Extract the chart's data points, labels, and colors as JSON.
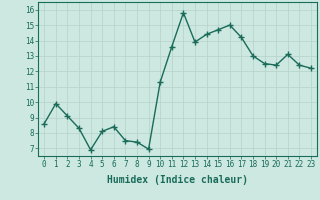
{
  "x": [
    0,
    1,
    2,
    3,
    4,
    5,
    6,
    7,
    8,
    9,
    10,
    11,
    12,
    13,
    14,
    15,
    16,
    17,
    18,
    19,
    20,
    21,
    22,
    23
  ],
  "y": [
    8.6,
    9.9,
    9.1,
    8.3,
    6.9,
    8.1,
    8.4,
    7.5,
    7.4,
    6.95,
    11.3,
    13.6,
    15.8,
    13.9,
    14.4,
    14.7,
    15.0,
    14.2,
    13.0,
    12.5,
    12.4,
    13.1,
    12.4,
    12.2
  ],
  "line_color": "#1a6b5a",
  "marker": "+",
  "marker_size": 4,
  "bg_color": "#cce8e0",
  "grid_color": "#b8d4cc",
  "xlabel": "Humidex (Indice chaleur)",
  "xlim": [
    -0.5,
    23.5
  ],
  "ylim": [
    6.5,
    16.5
  ],
  "yticks": [
    7,
    8,
    9,
    10,
    11,
    12,
    13,
    14,
    15,
    16
  ],
  "xticks": [
    0,
    1,
    2,
    3,
    4,
    5,
    6,
    7,
    8,
    9,
    10,
    11,
    12,
    13,
    14,
    15,
    16,
    17,
    18,
    19,
    20,
    21,
    22,
    23
  ],
  "tick_fontsize": 5.5,
  "xlabel_fontsize": 7.0,
  "linewidth": 1.0
}
